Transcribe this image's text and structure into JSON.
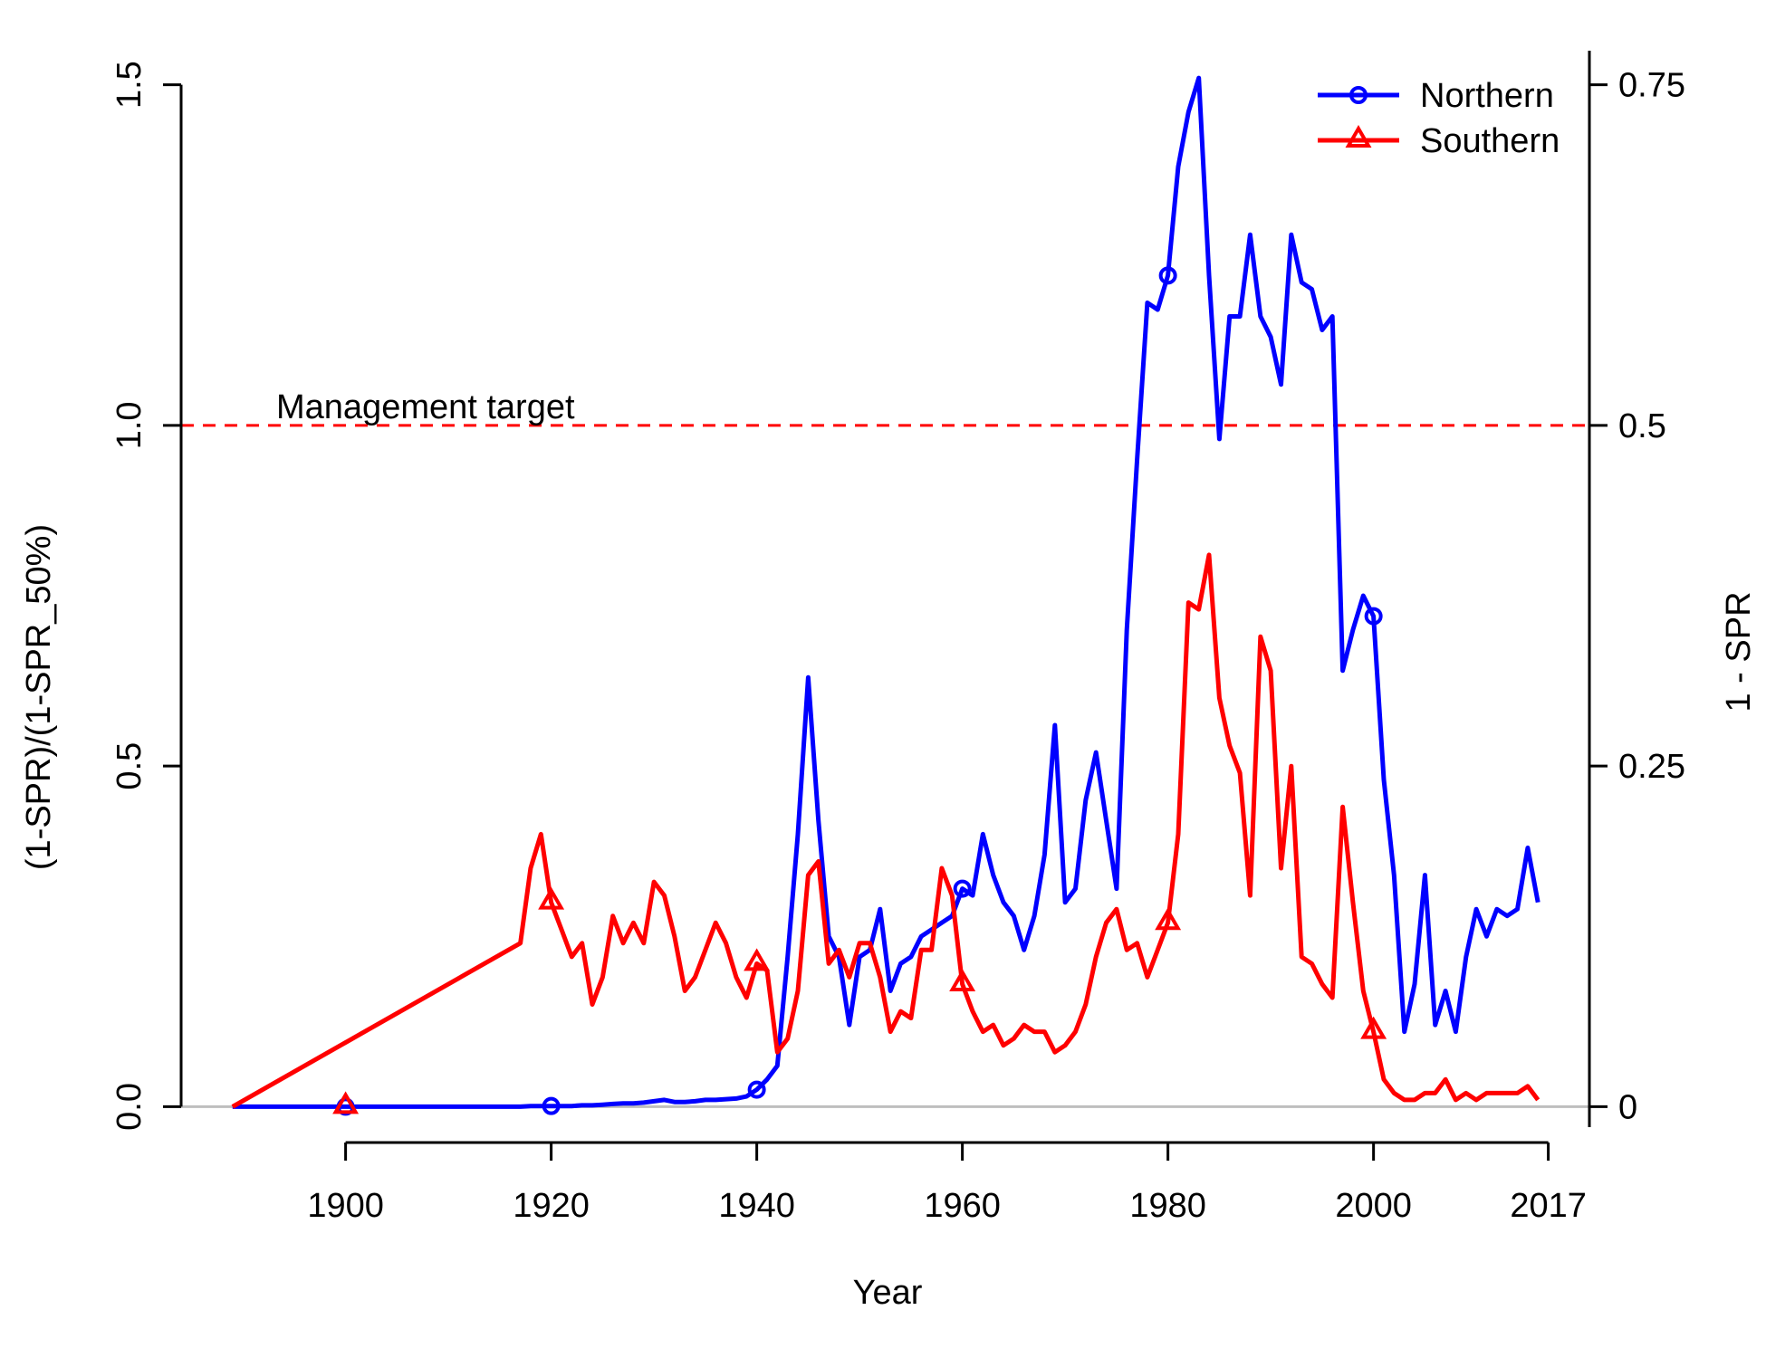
{
  "chart_data": {
    "type": "line",
    "title": "",
    "xlabel": "Year",
    "ylabel": "(1-SPR)/(1-SPR_50%)",
    "ylabel_right": "1 - SPR",
    "xlim": [
      1884,
      2021
    ],
    "ylim": [
      -0.03,
      1.55
    ],
    "x_ticks": [
      1900,
      1920,
      1940,
      1960,
      1980,
      2000,
      2017
    ],
    "y_ticks": [
      0.0,
      0.5,
      1.0,
      1.5
    ],
    "y_tick_labels": [
      "0.0",
      "0.5",
      "1.0",
      "1.5"
    ],
    "y_right_ticks": [
      0,
      0.25,
      0.5,
      0.75
    ],
    "y_right_tick_labels": [
      "0",
      "0.25",
      "0.5",
      "0.75"
    ],
    "grid": false,
    "legend_position": "top-right",
    "reference_line": {
      "y": 1.0,
      "label": "Management target",
      "color": "#ff0000",
      "style": "dashed"
    },
    "baseline": {
      "y": 0.0,
      "color": "#bebebe"
    },
    "series": [
      {
        "name": "Northern",
        "color": "#0000ff",
        "marker": "circle",
        "marker_x": [
          1900,
          1920,
          1940,
          1960,
          1980,
          2000
        ],
        "x": [
          1889,
          1890,
          1891,
          1892,
          1893,
          1894,
          1895,
          1896,
          1897,
          1898,
          1899,
          1900,
          1901,
          1902,
          1903,
          1904,
          1905,
          1906,
          1907,
          1908,
          1909,
          1910,
          1911,
          1912,
          1913,
          1914,
          1915,
          1916,
          1917,
          1918,
          1919,
          1920,
          1921,
          1922,
          1923,
          1924,
          1925,
          1926,
          1927,
          1928,
          1929,
          1930,
          1931,
          1932,
          1933,
          1934,
          1935,
          1936,
          1937,
          1938,
          1939,
          1940,
          1941,
          1942,
          1943,
          1944,
          1945,
          1946,
          1947,
          1948,
          1949,
          1950,
          1951,
          1952,
          1953,
          1954,
          1955,
          1956,
          1957,
          1958,
          1959,
          1960,
          1961,
          1962,
          1963,
          1964,
          1965,
          1966,
          1967,
          1968,
          1969,
          1970,
          1971,
          1972,
          1973,
          1974,
          1975,
          1976,
          1977,
          1978,
          1979,
          1980,
          1981,
          1982,
          1983,
          1984,
          1985,
          1986,
          1987,
          1988,
          1989,
          1990,
          1991,
          1992,
          1993,
          1994,
          1995,
          1996,
          1997,
          1998,
          1999,
          2000,
          2001,
          2002,
          2003,
          2004,
          2005,
          2006,
          2007,
          2008,
          2009,
          2010,
          2011,
          2012,
          2013,
          2014,
          2015,
          2016
        ],
        "values": [
          0,
          0,
          0,
          0,
          0,
          0,
          0,
          0,
          0,
          0,
          0,
          0,
          0,
          0,
          0,
          0,
          0,
          0,
          0,
          0,
          0,
          0,
          0,
          0,
          0,
          0,
          0,
          0,
          0,
          0.001,
          0.001,
          0.001,
          0.001,
          0.001,
          0.002,
          0.002,
          0.003,
          0.004,
          0.005,
          0.005,
          0.006,
          0.008,
          0.01,
          0.007,
          0.007,
          0.008,
          0.01,
          0.01,
          0.011,
          0.012,
          0.015,
          0.025,
          0.04,
          0.06,
          0.22,
          0.4,
          0.63,
          0.42,
          0.25,
          0.22,
          0.12,
          0.22,
          0.23,
          0.29,
          0.17,
          0.21,
          0.22,
          0.25,
          0.26,
          0.27,
          0.28,
          0.32,
          0.31,
          0.4,
          0.34,
          0.3,
          0.28,
          0.23,
          0.28,
          0.37,
          0.56,
          0.3,
          0.32,
          0.45,
          0.52,
          0.42,
          0.32,
          0.7,
          0.95,
          1.18,
          1.17,
          1.22,
          1.38,
          1.46,
          1.51,
          1.22,
          0.98,
          1.16,
          1.16,
          1.28,
          1.16,
          1.13,
          1.06,
          1.28,
          1.21,
          1.2,
          1.14,
          1.16,
          0.64,
          0.7,
          0.75,
          0.72,
          0.48,
          0.34,
          0.11,
          0.18,
          0.34,
          0.12,
          0.17,
          0.11,
          0.22,
          0.29,
          0.25,
          0.29,
          0.28,
          0.29,
          0.38,
          0.3
        ]
      },
      {
        "name": "Southern",
        "color": "#ff0000",
        "marker": "triangle",
        "marker_x": [
          1900,
          1920,
          1940,
          1960,
          1980,
          2000
        ],
        "x": [
          1889,
          1917,
          1918,
          1919,
          1920,
          1921,
          1922,
          1923,
          1924,
          1925,
          1926,
          1927,
          1928,
          1929,
          1930,
          1931,
          1932,
          1933,
          1934,
          1935,
          1936,
          1937,
          1938,
          1939,
          1940,
          1941,
          1942,
          1943,
          1944,
          1945,
          1946,
          1947,
          1948,
          1949,
          1950,
          1951,
          1952,
          1953,
          1954,
          1955,
          1956,
          1957,
          1958,
          1959,
          1960,
          1961,
          1962,
          1963,
          1964,
          1965,
          1966,
          1967,
          1968,
          1969,
          1970,
          1971,
          1972,
          1973,
          1974,
          1975,
          1976,
          1977,
          1978,
          1979,
          1980,
          1981,
          1982,
          1983,
          1984,
          1985,
          1986,
          1987,
          1988,
          1989,
          1990,
          1991,
          1992,
          1993,
          1994,
          1995,
          1996,
          1997,
          1998,
          1999,
          2000,
          2001,
          2002,
          2003,
          2004,
          2005,
          2006,
          2007,
          2008,
          2009,
          2010,
          2011,
          2012,
          2013,
          2014,
          2015,
          2016
        ],
        "values": [
          0,
          0.24,
          0.35,
          0.4,
          0.3,
          0.26,
          0.22,
          0.24,
          0.15,
          0.19,
          0.28,
          0.24,
          0.27,
          0.24,
          0.33,
          0.31,
          0.25,
          0.17,
          0.19,
          0.23,
          0.27,
          0.24,
          0.19,
          0.16,
          0.21,
          0.2,
          0.08,
          0.1,
          0.17,
          0.34,
          0.36,
          0.21,
          0.23,
          0.19,
          0.24,
          0.24,
          0.19,
          0.11,
          0.14,
          0.13,
          0.23,
          0.23,
          0.35,
          0.31,
          0.18,
          0.14,
          0.11,
          0.12,
          0.09,
          0.1,
          0.12,
          0.11,
          0.11,
          0.08,
          0.09,
          0.11,
          0.15,
          0.22,
          0.27,
          0.29,
          0.23,
          0.24,
          0.19,
          0.23,
          0.27,
          0.4,
          0.74,
          0.73,
          0.81,
          0.6,
          0.53,
          0.49,
          0.31,
          0.69,
          0.64,
          0.35,
          0.5,
          0.22,
          0.21,
          0.18,
          0.16,
          0.44,
          0.3,
          0.17,
          0.11,
          0.04,
          0.02,
          0.01,
          0.01,
          0.02,
          0.02,
          0.04,
          0.01,
          0.02,
          0.01,
          0.02,
          0.02,
          0.02,
          0.02,
          0.03,
          0.01
        ]
      }
    ]
  }
}
